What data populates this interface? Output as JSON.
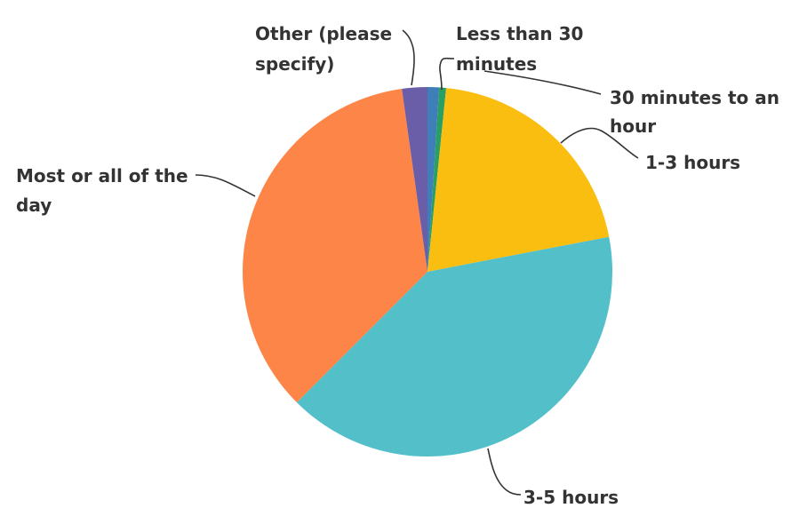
{
  "chart_data": {
    "type": "pie",
    "title": "",
    "slices": [
      {
        "label": "Less than 30 minutes",
        "label_lines": [
          "Less than 30",
          "minutes"
        ],
        "value": 1.0,
        "color": "#3f7fb9"
      },
      {
        "label": "30 minutes to an hour",
        "label_lines": [
          "30 minutes to an",
          "hour"
        ],
        "value": 0.6,
        "color": "#2a9f63"
      },
      {
        "label": "1-3 hours",
        "label_lines": [
          "1-3 hours"
        ],
        "value": 20.2,
        "color": "#f9be0f"
      },
      {
        "label": "3-5 hours",
        "label_lines": [
          "3-5 hours"
        ],
        "value": 40.2,
        "color": "#52bfc9"
      },
      {
        "label": "Most or all of the day",
        "label_lines": [
          "Most or all of the",
          "day"
        ],
        "value": 35.0,
        "color": "#fd8547"
      },
      {
        "label": "Other (please specify)",
        "label_lines": [
          "Other (please",
          "specify)"
        ],
        "value": 2.2,
        "color": "#6b5ea8"
      }
    ],
    "start_angle_deg": 90,
    "direction": "clockwise",
    "legend": "none",
    "units": "%"
  }
}
